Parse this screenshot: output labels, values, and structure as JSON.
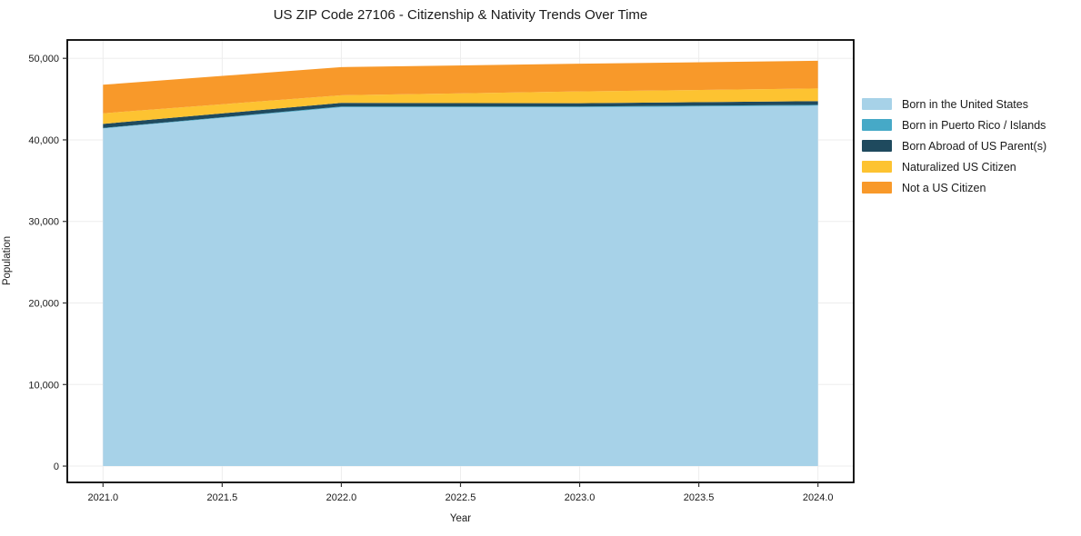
{
  "chart_data": {
    "type": "area",
    "stacked": true,
    "title": "US ZIP Code 27106 - Citizenship & Nativity Trends Over Time",
    "xlabel": "Year",
    "ylabel": "Population",
    "x": [
      2021,
      2022,
      2023,
      2024
    ],
    "series": [
      {
        "name": "Born in the United States",
        "color": "#a7d2e8",
        "values": [
          41400,
          44000,
          44000,
          44200
        ]
      },
      {
        "name": "Born in Puerto Rico / Islands",
        "color": "#46a9c7",
        "values": [
          60,
          90,
          90,
          100
        ]
      },
      {
        "name": "Born Abroad of US Parent(s)",
        "color": "#1f4a5e",
        "values": [
          500,
          450,
          400,
          450
        ]
      },
      {
        "name": "Naturalized US Citizen",
        "color": "#fdc331",
        "values": [
          1300,
          930,
          1450,
          1550
        ]
      },
      {
        "name": "Not a US Citizen",
        "color": "#f8992a",
        "values": [
          3500,
          3450,
          3400,
          3400
        ]
      }
    ],
    "totals": [
      46760,
      48920,
      49340,
      49700
    ],
    "xticks": [
      {
        "value": 2021.0,
        "label": "2021.0"
      },
      {
        "value": 2021.5,
        "label": "2021.5"
      },
      {
        "value": 2022.0,
        "label": "2022.0"
      },
      {
        "value": 2022.5,
        "label": "2022.5"
      },
      {
        "value": 2023.0,
        "label": "2023.0"
      },
      {
        "value": 2023.5,
        "label": "2023.5"
      },
      {
        "value": 2024.0,
        "label": "2024.0"
      }
    ],
    "yticks": [
      {
        "value": 0,
        "label": "0"
      },
      {
        "value": 10000,
        "label": "10,000"
      },
      {
        "value": 20000,
        "label": "20,000"
      },
      {
        "value": 30000,
        "label": "30,000"
      },
      {
        "value": 40000,
        "label": "40,000"
      },
      {
        "value": 50000,
        "label": "50,000"
      }
    ],
    "xlim": [
      2020.85,
      2024.15
    ],
    "ylim": [
      -2000,
      52250
    ],
    "grid": true,
    "legend_position": "right-outside",
    "colors": {
      "background": "#ffffff",
      "gridline": "#ededed",
      "spine": "#000000",
      "tick": "#333333",
      "text": "#1a1a1a"
    }
  }
}
